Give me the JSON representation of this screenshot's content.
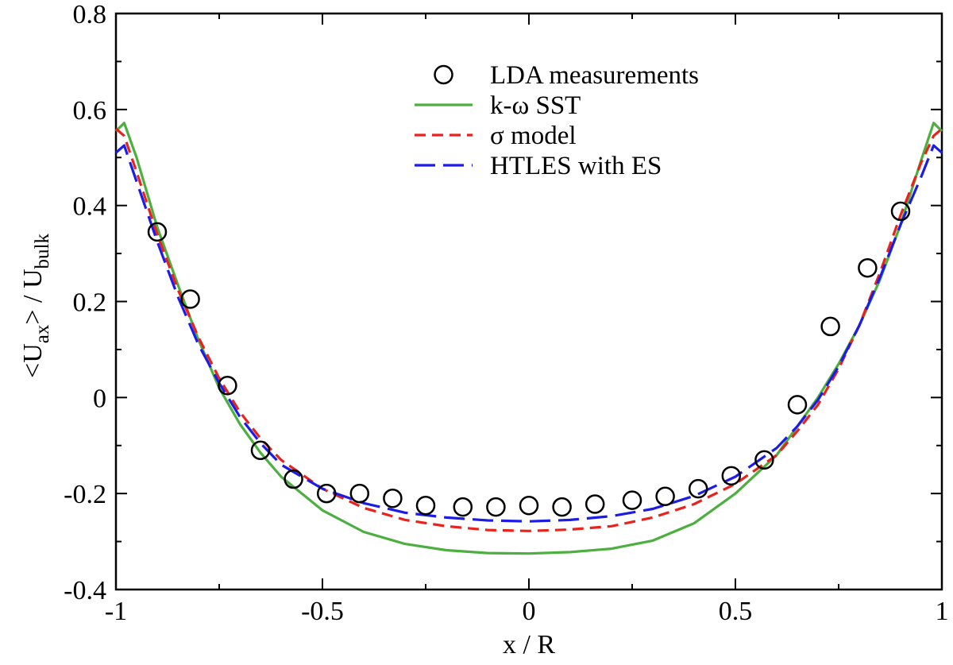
{
  "chart_data": {
    "type": "line",
    "xlabel": "x / R",
    "ylabel": {
      "main": "<U",
      "sub1": "ax",
      "mid": "> / U",
      "sub2": "bulk"
    },
    "xlim": [
      -1,
      1
    ],
    "ylim": [
      -0.4,
      0.8
    ],
    "x_ticks": [
      -1,
      -0.5,
      0,
      0.5,
      1
    ],
    "x_tick_labels": [
      "-1",
      "-0.5",
      "0",
      "0.5",
      "1"
    ],
    "y_ticks": [
      -0.4,
      -0.2,
      0,
      0.2,
      0.4,
      0.6,
      0.8
    ],
    "y_tick_labels": [
      "-0.4",
      "-0.2",
      "0",
      "0.2",
      "0.4",
      "0.6",
      "0.8"
    ],
    "grid": false,
    "legend_position": "top-right",
    "legend": [
      {
        "label": "LDA measurements",
        "style": "circle",
        "color": "#000000"
      },
      {
        "label": "k-ω SST",
        "style": "solid",
        "color": "#4caf3f"
      },
      {
        "label": "σ  model",
        "style": "dash-short",
        "color": "#e8231d"
      },
      {
        "label": "HTLES with ES",
        "style": "dash-long",
        "color": "#1c1ce8"
      }
    ],
    "series": [
      {
        "name": "LDA measurements",
        "style": "circle",
        "color": "#000000",
        "x": [
          -0.9,
          -0.82,
          -0.73,
          -0.65,
          -0.57,
          -0.49,
          -0.41,
          -0.33,
          -0.25,
          -0.16,
          -0.08,
          0,
          0.08,
          0.16,
          0.25,
          0.33,
          0.41,
          0.49,
          0.57,
          0.65,
          0.73,
          0.82,
          0.9
        ],
        "y": [
          0.345,
          0.205,
          0.025,
          -0.11,
          -0.17,
          -0.2,
          -0.2,
          -0.21,
          -0.225,
          -0.228,
          -0.228,
          -0.225,
          -0.228,
          -0.222,
          -0.214,
          -0.206,
          -0.19,
          -0.163,
          -0.13,
          -0.015,
          0.148,
          0.27,
          0.388
        ]
      },
      {
        "name": "k-ω SST",
        "style": "solid",
        "color": "#4caf3f",
        "x": [
          -1.0,
          -0.98,
          -0.95,
          -0.9,
          -0.85,
          -0.8,
          -0.75,
          -0.7,
          -0.65,
          -0.6,
          -0.5,
          -0.4,
          -0.3,
          -0.2,
          -0.1,
          0,
          0.1,
          0.2,
          0.3,
          0.4,
          0.5,
          0.6,
          0.65,
          0.7,
          0.75,
          0.8,
          0.85,
          0.9,
          0.95,
          0.98,
          1.0
        ],
        "y": [
          0.555,
          0.572,
          0.5,
          0.355,
          0.235,
          0.12,
          0.02,
          -0.055,
          -0.115,
          -0.165,
          -0.235,
          -0.28,
          -0.305,
          -0.318,
          -0.324,
          -0.325,
          -0.322,
          -0.315,
          -0.298,
          -0.262,
          -0.2,
          -0.12,
          -0.06,
          0.0,
          0.07,
          0.15,
          0.245,
          0.36,
          0.495,
          0.572,
          0.555
        ]
      },
      {
        "name": "σ  model",
        "style": "dash-short",
        "color": "#e8231d",
        "x": [
          -1.0,
          -0.98,
          -0.95,
          -0.9,
          -0.85,
          -0.8,
          -0.75,
          -0.7,
          -0.65,
          -0.6,
          -0.5,
          -0.4,
          -0.3,
          -0.2,
          -0.1,
          0,
          0.1,
          0.2,
          0.3,
          0.4,
          0.5,
          0.6,
          0.65,
          0.7,
          0.75,
          0.8,
          0.85,
          0.9,
          0.95,
          0.98,
          1.0
        ],
        "y": [
          0.56,
          0.545,
          0.47,
          0.34,
          0.225,
          0.125,
          0.04,
          -0.03,
          -0.085,
          -0.13,
          -0.19,
          -0.23,
          -0.255,
          -0.268,
          -0.276,
          -0.278,
          -0.275,
          -0.268,
          -0.25,
          -0.222,
          -0.18,
          -0.12,
          -0.07,
          -0.015,
          0.06,
          0.15,
          0.26,
          0.38,
          0.49,
          0.545,
          0.56
        ]
      },
      {
        "name": "HTLES with ES",
        "style": "dash-long",
        "color": "#1c1ce8",
        "x": [
          -1.0,
          -0.98,
          -0.95,
          -0.9,
          -0.85,
          -0.8,
          -0.75,
          -0.7,
          -0.65,
          -0.6,
          -0.5,
          -0.4,
          -0.3,
          -0.2,
          -0.1,
          0,
          0.1,
          0.2,
          0.3,
          0.4,
          0.5,
          0.6,
          0.65,
          0.7,
          0.75,
          0.8,
          0.85,
          0.9,
          0.95,
          0.98,
          1.0
        ],
        "y": [
          0.51,
          0.525,
          0.45,
          0.325,
          0.21,
          0.11,
          0.03,
          -0.04,
          -0.095,
          -0.14,
          -0.19,
          -0.22,
          -0.24,
          -0.25,
          -0.256,
          -0.258,
          -0.255,
          -0.247,
          -0.232,
          -0.205,
          -0.165,
          -0.105,
          -0.06,
          -0.005,
          0.065,
          0.15,
          0.25,
          0.36,
          0.46,
          0.525,
          0.51
        ]
      }
    ]
  }
}
